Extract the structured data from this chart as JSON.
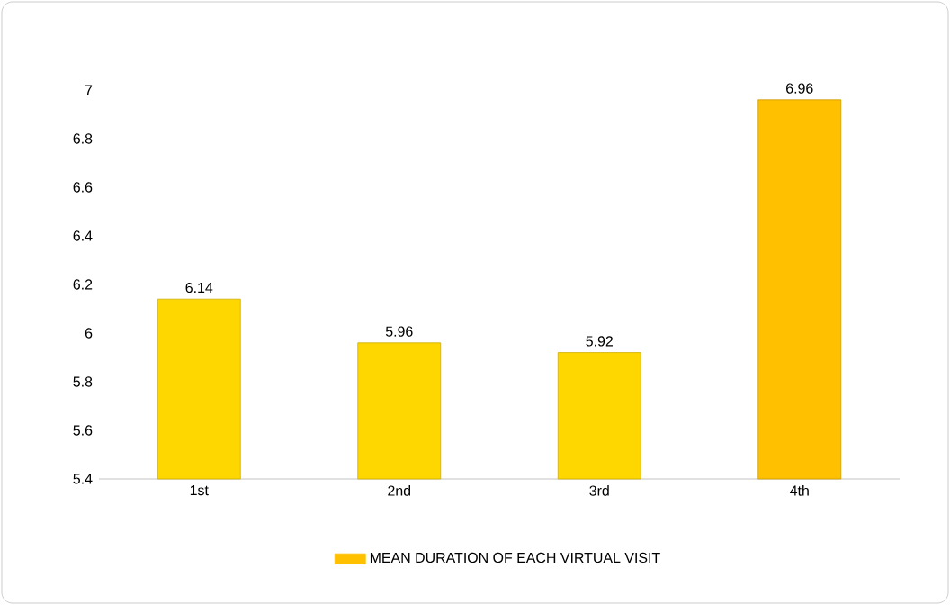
{
  "chart_data": {
    "type": "bar",
    "categories": [
      "1st",
      "2nd",
      "3rd",
      "4th"
    ],
    "series": [
      {
        "name": "MEAN DURATION OF EACH VIRTUAL VISIT",
        "color": "#ffc000",
        "colors": [
          "#ffd700",
          "#ffd700",
          "#ffd700",
          "#ffc000"
        ],
        "values": [
          6.14,
          5.96,
          5.92,
          6.96
        ]
      }
    ],
    "ylim": [
      5.4,
      7.0
    ],
    "yticks": [
      5.4,
      5.6,
      5.8,
      6,
      6.2,
      6.4,
      6.6,
      6.8,
      7
    ],
    "data_labels": true,
    "legend": "bottom",
    "grid": false
  }
}
